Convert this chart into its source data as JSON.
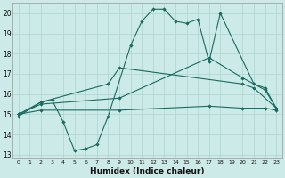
{
  "xlabel": "Humidex (Indice chaleur)",
  "bg_color": "#cceae7",
  "grid_color": "#add4d0",
  "line_color": "#1a6b60",
  "xlim": [
    -0.5,
    23.5
  ],
  "ylim": [
    12.8,
    20.5
  ],
  "yticks": [
    13,
    14,
    15,
    16,
    17,
    18,
    19,
    20
  ],
  "xticks": [
    0,
    1,
    2,
    3,
    4,
    5,
    6,
    7,
    8,
    9,
    10,
    11,
    12,
    13,
    14,
    15,
    16,
    17,
    18,
    19,
    20,
    21,
    22,
    23
  ],
  "line1_x": [
    0,
    2,
    3,
    4,
    5,
    6,
    7,
    8,
    10,
    11,
    12,
    13,
    14,
    15,
    16,
    17,
    18,
    21,
    22,
    23
  ],
  "line1_y": [
    14.9,
    15.6,
    15.7,
    14.6,
    13.2,
    13.3,
    13.5,
    14.9,
    18.4,
    19.6,
    20.2,
    20.2,
    19.6,
    19.5,
    19.7,
    17.6,
    20.0,
    16.5,
    16.3,
    15.3
  ],
  "line2_x": [
    0,
    2,
    8,
    9,
    20,
    21,
    23
  ],
  "line2_y": [
    15.0,
    15.6,
    16.5,
    17.3,
    16.5,
    16.3,
    15.3
  ],
  "line3_x": [
    0,
    2,
    9,
    17,
    20,
    22,
    23
  ],
  "line3_y": [
    15.0,
    15.5,
    15.8,
    17.8,
    16.8,
    16.2,
    15.3
  ],
  "line4_x": [
    0,
    2,
    9,
    17,
    20,
    22,
    23
  ],
  "line4_y": [
    15.0,
    15.2,
    15.2,
    15.4,
    15.3,
    15.3,
    15.2
  ]
}
